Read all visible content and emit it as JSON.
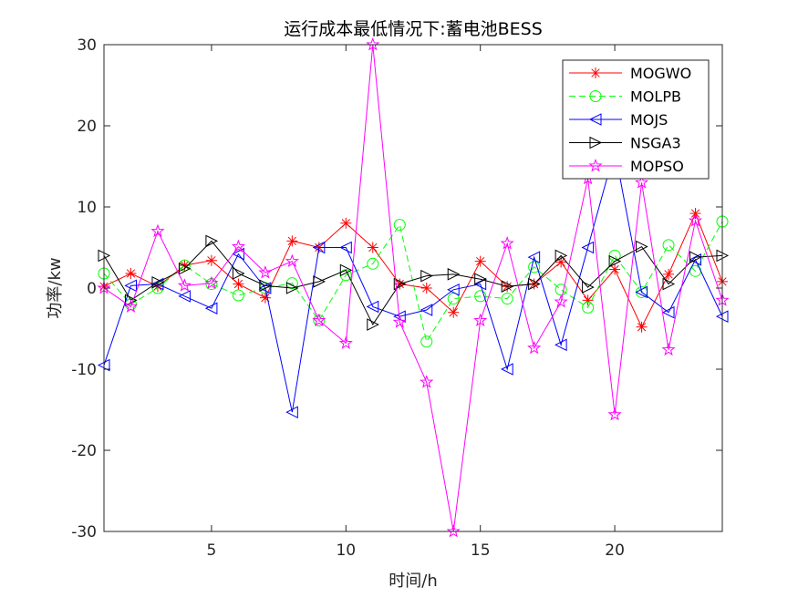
{
  "chart_data": {
    "type": "line",
    "title": "运行成本最低情况下:蓄电池BESS",
    "xlabel": "时间/h",
    "ylabel": "功率/kw",
    "xlim": [
      1,
      24
    ],
    "ylim": [
      -30,
      30
    ],
    "xticks": [
      5,
      10,
      15,
      20
    ],
    "yticks": [
      -30,
      -20,
      -10,
      0,
      10,
      20,
      30
    ],
    "legend_position": "top-right",
    "x": [
      1,
      2,
      3,
      4,
      5,
      6,
      7,
      8,
      9,
      10,
      11,
      12,
      13,
      14,
      15,
      16,
      17,
      18,
      19,
      20,
      21,
      22,
      23,
      24
    ],
    "series": [
      {
        "name": "MOGWO",
        "color": "#ff0000",
        "marker": "asterisk",
        "dash": "solid",
        "values": [
          0.2,
          1.8,
          0.2,
          2.8,
          3.4,
          0.5,
          -1.2,
          5.8,
          5.0,
          8.0,
          5.0,
          0.5,
          0.0,
          -3.0,
          3.3,
          0.2,
          0.5,
          3.2,
          -1.5,
          2.3,
          -4.8,
          1.7,
          9.2,
          0.8
        ]
      },
      {
        "name": "MOLPB",
        "color": "#00ff00",
        "marker": "circle",
        "dash": "dashed",
        "values": [
          1.8,
          -2.0,
          0.0,
          2.8,
          0.5,
          -0.9,
          0.0,
          0.6,
          -4.0,
          1.6,
          3.0,
          7.8,
          -6.6,
          -1.3,
          -1.0,
          -1.3,
          2.6,
          -0.2,
          -2.4,
          4.0,
          -0.5,
          5.3,
          2.1,
          8.2
        ]
      },
      {
        "name": "MOJS",
        "color": "#0000ff",
        "marker": "triangle-left",
        "dash": "solid",
        "values": [
          -9.5,
          0.3,
          0.5,
          -1.0,
          -2.5,
          4.2,
          0.0,
          -15.3,
          5.0,
          5.0,
          -2.3,
          -3.5,
          -2.7,
          -0.2,
          0.5,
          -10.0,
          3.8,
          -7.0,
          5.0,
          17.0,
          -0.5,
          -3.0,
          3.5,
          -3.5
        ]
      },
      {
        "name": "NSGA3",
        "color": "#000000",
        "marker": "triangle-right",
        "dash": "solid",
        "values": [
          4.0,
          -1.5,
          0.7,
          2.4,
          5.8,
          1.8,
          0.3,
          0.0,
          0.8,
          2.2,
          -4.5,
          0.5,
          1.5,
          1.7,
          1.1,
          0.2,
          0.5,
          4.0,
          0.1,
          3.3,
          5.1,
          0.5,
          3.8,
          4.0
        ]
      },
      {
        "name": "MOPSO",
        "color": "#ff00ff",
        "marker": "pentagram",
        "dash": "solid",
        "values": [
          0.0,
          -2.3,
          7.0,
          0.3,
          0.6,
          5.1,
          1.9,
          3.3,
          -4.0,
          -6.8,
          30.0,
          -4.2,
          -11.6,
          -30.0,
          -4.0,
          5.5,
          -7.4,
          -1.7,
          13.5,
          -15.6,
          13.0,
          -7.6,
          8.3,
          -1.5
        ]
      }
    ]
  }
}
